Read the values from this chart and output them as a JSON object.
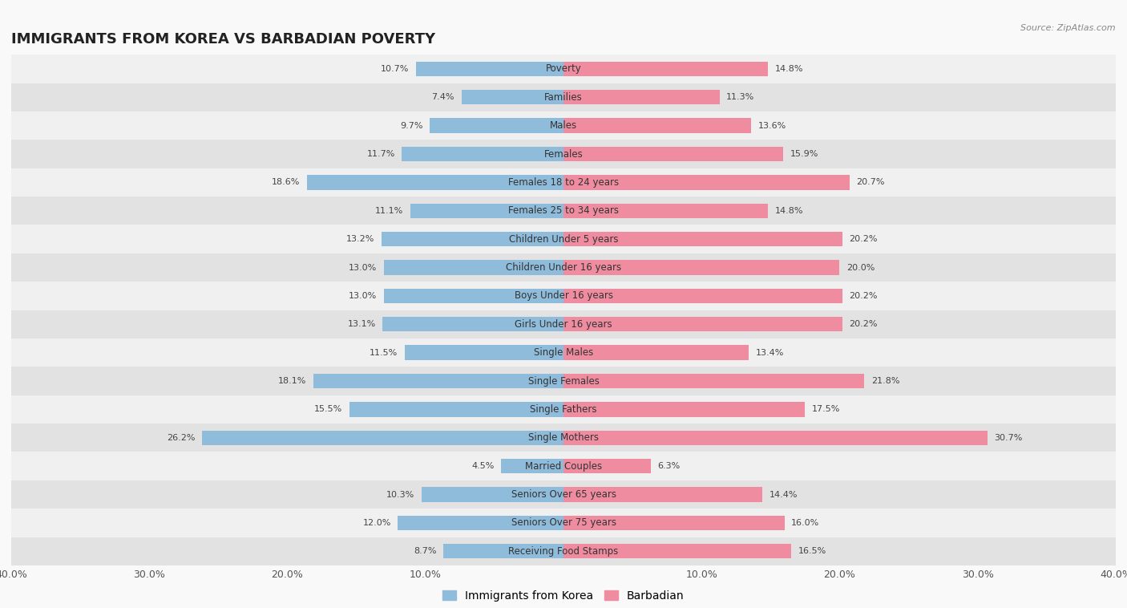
{
  "title": "IMMIGRANTS FROM KOREA VS BARBADIAN POVERTY",
  "source": "Source: ZipAtlas.com",
  "categories": [
    "Poverty",
    "Families",
    "Males",
    "Females",
    "Females 18 to 24 years",
    "Females 25 to 34 years",
    "Children Under 5 years",
    "Children Under 16 years",
    "Boys Under 16 years",
    "Girls Under 16 years",
    "Single Males",
    "Single Females",
    "Single Fathers",
    "Single Mothers",
    "Married Couples",
    "Seniors Over 65 years",
    "Seniors Over 75 years",
    "Receiving Food Stamps"
  ],
  "korea_values": [
    10.7,
    7.4,
    9.7,
    11.7,
    18.6,
    11.1,
    13.2,
    13.0,
    13.0,
    13.1,
    11.5,
    18.1,
    15.5,
    26.2,
    4.5,
    10.3,
    12.0,
    8.7
  ],
  "barbadian_values": [
    14.8,
    11.3,
    13.6,
    15.9,
    20.7,
    14.8,
    20.2,
    20.0,
    20.2,
    20.2,
    13.4,
    21.8,
    17.5,
    30.7,
    6.3,
    14.4,
    16.0,
    16.5
  ],
  "korea_color": "#8fbcdb",
  "barbadian_color": "#f08ca0",
  "korea_label": "Immigrants from Korea",
  "barbadian_label": "Barbadian",
  "xlim": 40.0,
  "bg_light": "#f0f0f0",
  "bg_dark": "#e2e2e2",
  "title_fontsize": 13,
  "label_fontsize": 8.5,
  "value_fontsize": 8,
  "legend_fontsize": 10,
  "tick_fontsize": 9
}
